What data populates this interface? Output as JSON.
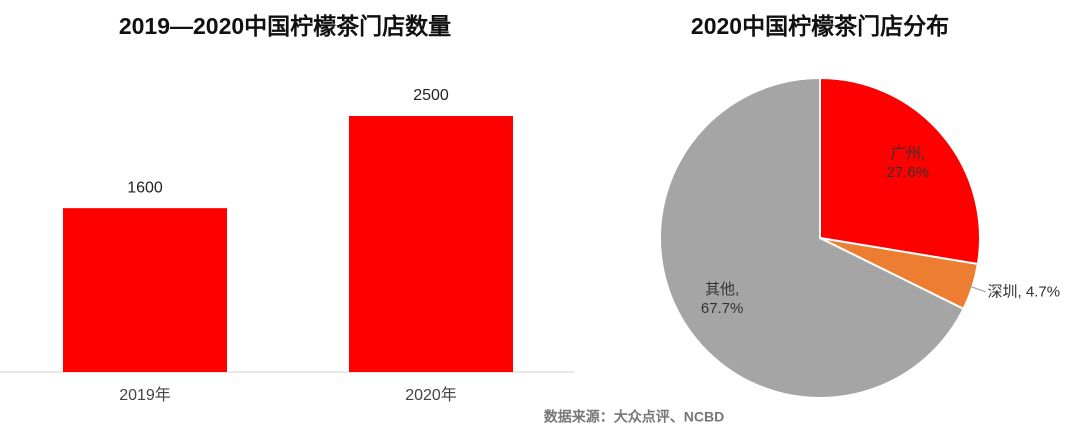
{
  "chart_data": [
    {
      "type": "bar",
      "title": "2019—2020中国柠檬茶门店数量",
      "categories": [
        "2019年",
        "2020年"
      ],
      "values": [
        1600,
        2500
      ],
      "color": "#ff0000"
    },
    {
      "type": "pie",
      "title": "2020中国柠檬茶门店分布",
      "values": [
        27.6,
        4.7,
        67.7
      ],
      "value_labels": [
        "广州,\n27.6%",
        "深圳, 4.7%",
        "其他,\n67.7%"
      ],
      "colors": [
        "#ff0000",
        "#ed7d31",
        "#a5a5a5"
      ]
    }
  ],
  "source": "数据来源：大众点评、NCBD"
}
